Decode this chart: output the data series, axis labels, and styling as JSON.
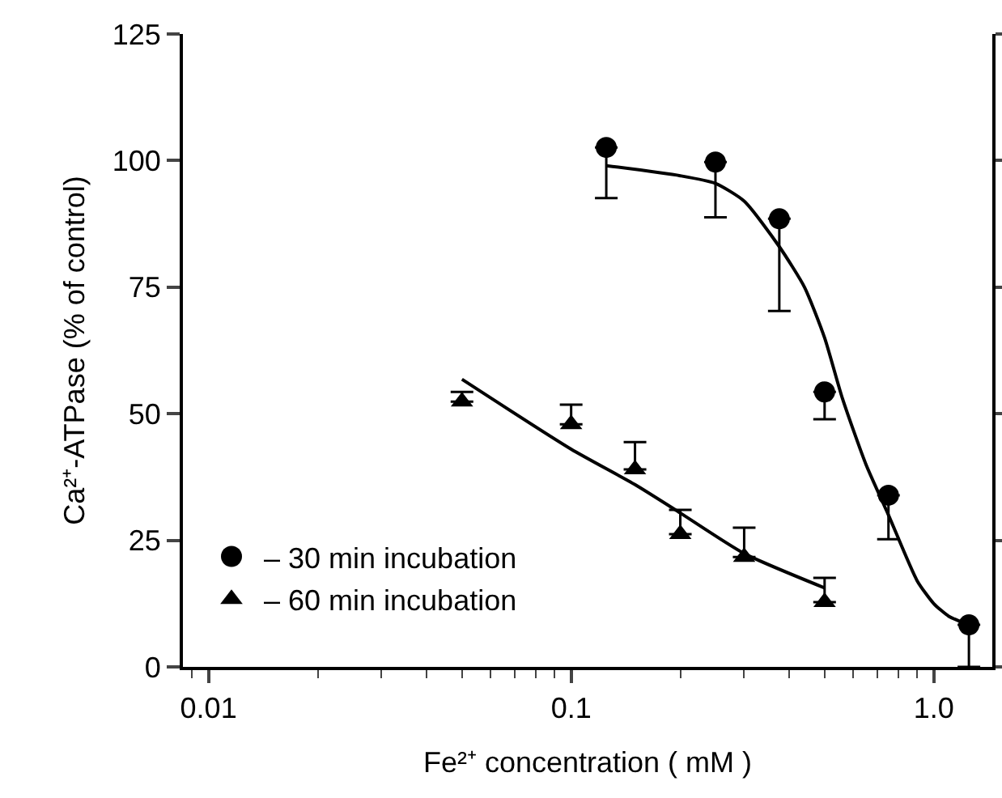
{
  "chart_data": {
    "type": "scatter",
    "xlabel": "Fe²⁺ concentration ( mM )",
    "ylabel": "Ca²⁺-ATPase (% of control)",
    "log": "x",
    "xlim": [
      0.0085,
      1.45
    ],
    "xticks": [
      0.01,
      0.1,
      {
        "value": 1,
        "label": "1.0"
      }
    ],
    "ylim": [
      0,
      125
    ],
    "yticks": [
      0,
      25,
      50,
      75,
      100,
      125
    ],
    "grid": false,
    "legend": "bottom left",
    "series": [
      {
        "name": "– 30 min incubation",
        "color": "#000000",
        "marker": "circle",
        "x": [
          0.125,
          0.25,
          0.375,
          0.5,
          0.75,
          1.25
        ],
        "values": [
          102.6,
          99.7,
          88.5,
          54.3,
          33.9,
          8.3
        ],
        "errors": [
          [
            92.6,
            102.6
          ],
          [
            88.8,
            99.7
          ],
          [
            70.3,
            88.5
          ],
          [
            48.9,
            54.3
          ],
          [
            25.2,
            33.9
          ],
          [
            0,
            8.3
          ]
        ]
      },
      {
        "name": "– 60 min incubation",
        "color": "#000000",
        "marker": "triangle",
        "x": [
          0.05,
          0.1,
          0.15,
          0.2,
          0.3,
          0.5
        ],
        "values": [
          52.4,
          47.9,
          39,
          26.2,
          21.7,
          12.8
        ],
        "errors": [
          [
            52.4,
            54.3
          ],
          [
            47.9,
            51.8
          ],
          [
            39,
            44.4
          ],
          [
            26.2,
            31
          ],
          [
            21.7,
            27.5
          ],
          [
            12.8,
            17.6
          ]
        ]
      },
      {
        "type": "line",
        "color": "#000000",
        "marker": "none",
        "x": [
          0.125,
          0.2,
          0.25,
          0.3,
          0.375,
          0.44,
          0.5,
          0.56,
          0.65,
          0.75,
          0.9,
          1.0,
          1.1,
          1.25
        ],
        "values": [
          99,
          97,
          95.5,
          92,
          83,
          75,
          65,
          53,
          40,
          30,
          17,
          12.5,
          10,
          8.3
        ]
      },
      {
        "type": "line",
        "color": "#000000",
        "marker": "none",
        "x": [
          0.05,
          0.1,
          0.15,
          0.2,
          0.3,
          0.5
        ],
        "values": [
          56.8,
          43,
          36,
          30.4,
          22.4,
          15.6
        ]
      }
    ]
  }
}
